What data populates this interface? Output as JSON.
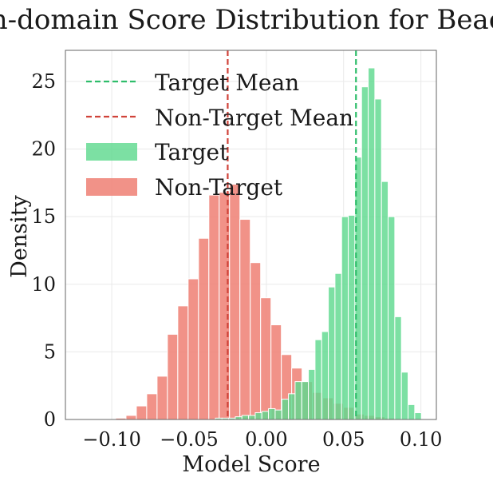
{
  "chart_data": {
    "type": "histogram",
    "title": "In-domain Score Distribution for Beach",
    "xlabel": "Model Score",
    "ylabel": "Density",
    "xlim": [
      -0.13,
      0.11
    ],
    "ylim": [
      0,
      27.3
    ],
    "x_ticks": [
      -0.1,
      -0.05,
      0.0,
      0.05,
      0.1
    ],
    "x_tick_labels": [
      "−0.10",
      "−0.05",
      "0.00",
      "0.05",
      "0.10"
    ],
    "y_ticks": [
      0,
      5,
      10,
      15,
      20,
      25
    ],
    "y_tick_labels": [
      "0",
      "5",
      "10",
      "15",
      "20",
      "25"
    ],
    "grid": true,
    "legend_position": "top-left",
    "legend": {
      "target_mean": "Target Mean",
      "non_target_mean": "Non-Target Mean",
      "target": "Target",
      "non_target": "Non-Target"
    },
    "target_mean": 0.058,
    "non_target_mean": -0.025,
    "colors": {
      "target": "#5fd98f",
      "non_target": "#ee7f73",
      "target_mean": "#2ebd6a",
      "non_target_mean": "#d0433a"
    },
    "series": [
      {
        "name": "Non-Target",
        "bin_width": 0.0067,
        "bins": [
          {
            "x0": -0.0975,
            "density": 0.1
          },
          {
            "x0": -0.0908,
            "density": 0.3
          },
          {
            "x0": -0.0841,
            "density": 1.0
          },
          {
            "x0": -0.0774,
            "density": 1.9
          },
          {
            "x0": -0.0707,
            "density": 3.2
          },
          {
            "x0": -0.064,
            "density": 6.3
          },
          {
            "x0": -0.0573,
            "density": 8.4
          },
          {
            "x0": -0.0506,
            "density": 10.4
          },
          {
            "x0": -0.0439,
            "density": 13.4
          },
          {
            "x0": -0.0372,
            "density": 16.6
          },
          {
            "x0": -0.0305,
            "density": 16.8
          },
          {
            "x0": -0.0238,
            "density": 17.4
          },
          {
            "x0": -0.0171,
            "density": 14.8
          },
          {
            "x0": -0.0104,
            "density": 11.6
          },
          {
            "x0": -0.0037,
            "density": 9.0
          },
          {
            "x0": 0.003,
            "density": 7.0
          },
          {
            "x0": 0.0097,
            "density": 4.8
          },
          {
            "x0": 0.0164,
            "density": 3.8
          },
          {
            "x0": 0.0231,
            "density": 2.8
          },
          {
            "x0": 0.0298,
            "density": 2.0
          },
          {
            "x0": 0.0365,
            "density": 1.6
          },
          {
            "x0": 0.0432,
            "density": 1.2
          },
          {
            "x0": 0.0499,
            "density": 0.9
          },
          {
            "x0": 0.0566,
            "density": 0.4
          },
          {
            "x0": 0.0633,
            "density": 0.3
          },
          {
            "x0": 0.07,
            "density": 0.2
          },
          {
            "x0": 0.0767,
            "density": 0.1
          }
        ]
      },
      {
        "name": "Target",
        "bin_width": 0.0043,
        "bins": [
          {
            "x0": -0.033,
            "density": 0.1
          },
          {
            "x0": -0.0287,
            "density": 0.1
          },
          {
            "x0": -0.0244,
            "density": 0.1
          },
          {
            "x0": -0.0201,
            "density": 0.2
          },
          {
            "x0": -0.0158,
            "density": 0.3
          },
          {
            "x0": -0.0115,
            "density": 0.3
          },
          {
            "x0": -0.0072,
            "density": 0.5
          },
          {
            "x0": -0.0029,
            "density": 0.6
          },
          {
            "x0": 0.0014,
            "density": 0.8
          },
          {
            "x0": 0.0057,
            "density": 0.7
          },
          {
            "x0": 0.01,
            "density": 1.5
          },
          {
            "x0": 0.0143,
            "density": 1.9
          },
          {
            "x0": 0.0186,
            "density": 2.8
          },
          {
            "x0": 0.0229,
            "density": 2.8
          },
          {
            "x0": 0.0272,
            "density": 3.7
          },
          {
            "x0": 0.0315,
            "density": 5.9
          },
          {
            "x0": 0.0358,
            "density": 6.5
          },
          {
            "x0": 0.0401,
            "density": 9.8
          },
          {
            "x0": 0.0444,
            "density": 10.8
          },
          {
            "x0": 0.0487,
            "density": 15.0
          },
          {
            "x0": 0.053,
            "density": 15.1
          },
          {
            "x0": 0.0573,
            "density": 19.4
          },
          {
            "x0": 0.0616,
            "density": 24.6
          },
          {
            "x0": 0.0659,
            "density": 26.0
          },
          {
            "x0": 0.0702,
            "density": 23.7
          },
          {
            "x0": 0.0745,
            "density": 17.6
          },
          {
            "x0": 0.0788,
            "density": 15.0
          },
          {
            "x0": 0.0831,
            "density": 7.6
          },
          {
            "x0": 0.0874,
            "density": 3.5
          },
          {
            "x0": 0.0917,
            "density": 1.1
          },
          {
            "x0": 0.096,
            "density": 0.5
          }
        ]
      }
    ]
  }
}
